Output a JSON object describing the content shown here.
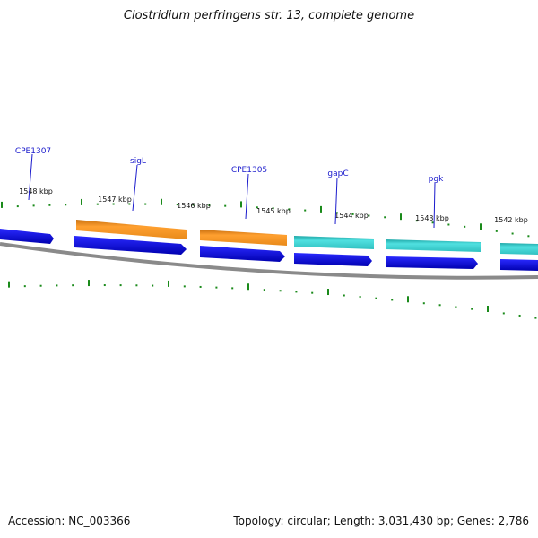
{
  "header": {
    "title": "Clostridium perfringens str. 13, complete genome"
  },
  "footer": {
    "accession": "Accession: NC_003366",
    "summary": "Topology: circular; Length: 3,031,430 bp; Genes: 2,786"
  },
  "map": {
    "kbp_labels": [
      "1548 kbp",
      "1547 kbp",
      "1546 kbp",
      "1545 kbp",
      "1544 kbp",
      "1543 kbp",
      "1542 kbp"
    ],
    "genes": [
      {
        "name": "CPE1307",
        "color": "#1010c8"
      },
      {
        "name": "sigL",
        "color": "#f0901a"
      },
      {
        "name": "CPE1305",
        "color": "#f0901a"
      },
      {
        "name": "gapC",
        "color": "#30c8c8"
      },
      {
        "name": "pgk",
        "color": "#30c8c8"
      }
    ],
    "colors": {
      "cds": "#0a0ae6",
      "backbone": "#8a8a8a",
      "ticks": "#1a8a1a",
      "gene_label": "#1a1acc"
    }
  }
}
